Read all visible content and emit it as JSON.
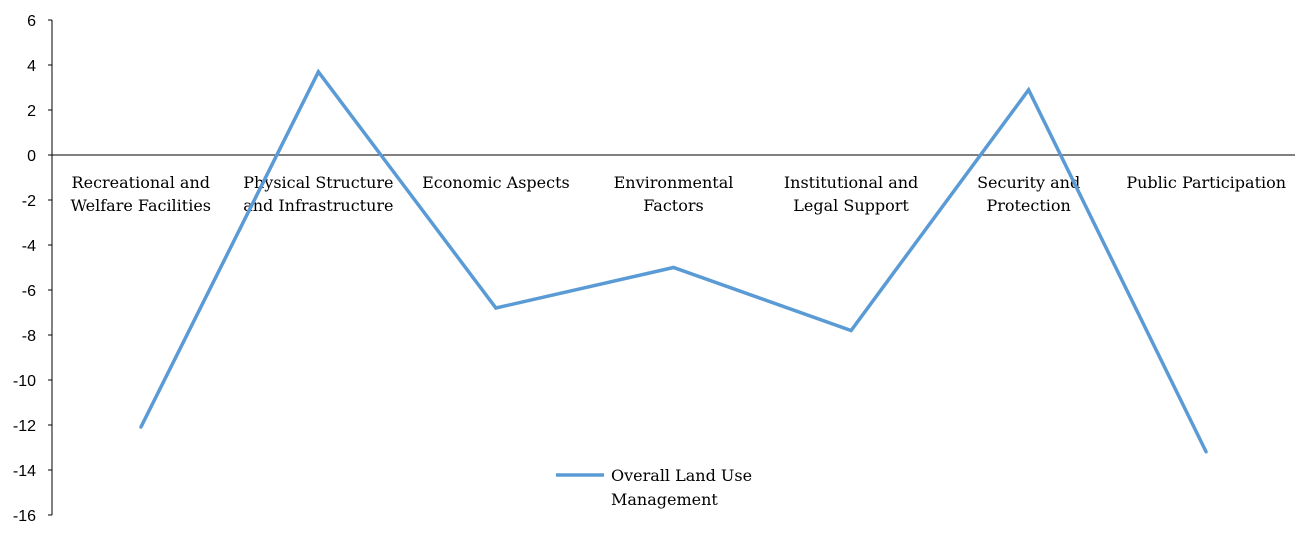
{
  "chart_data": {
    "type": "line",
    "categories": [
      [
        "Recreational and",
        "Welfare Facilities"
      ],
      [
        "Physical Structure",
        "and Infrastructure"
      ],
      [
        "Economic Aspects"
      ],
      [
        "Environmental",
        "Factors"
      ],
      [
        "Institutional and",
        "Legal Support"
      ],
      [
        "Security and",
        "Protection"
      ],
      [
        "Public Participation"
      ]
    ],
    "series": [
      {
        "name": "Overall Land Use Management",
        "legend_lines": [
          "Overall Land Use",
          "Management"
        ],
        "color": "#5b9bd5",
        "values": [
          -12.1,
          3.7,
          -6.8,
          -5.0,
          -7.8,
          2.9,
          -13.2
        ]
      }
    ],
    "ylim": [
      -16,
      6
    ],
    "yticks": [
      6,
      4,
      2,
      0,
      -2,
      -4,
      -6,
      -8,
      -10,
      -12,
      -14,
      -16
    ],
    "legend_position": "bottom-center",
    "grid": false
  }
}
